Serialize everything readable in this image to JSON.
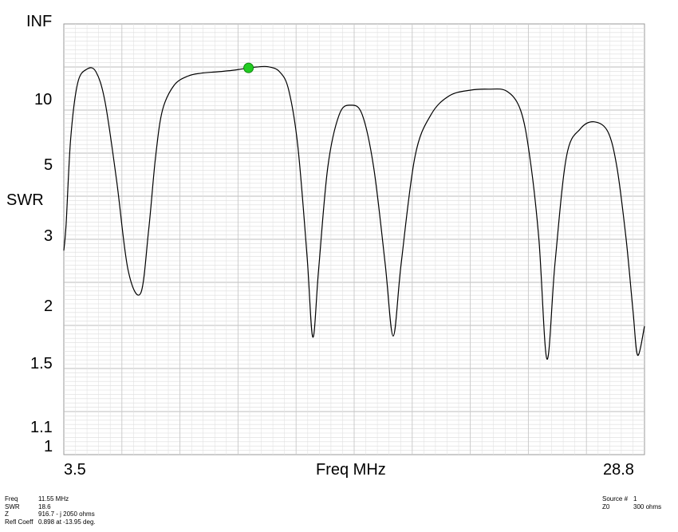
{
  "chart_data": {
    "type": "line",
    "title": "",
    "ylabel": "SWR",
    "xlabel": "Freq MHz",
    "y_scale": "log-swr",
    "y_tick_labels": [
      "INF",
      "10",
      "5",
      "3",
      "2",
      "1.5",
      "1.1",
      "1"
    ],
    "x_tick_labels": [
      "3.5",
      "28.8"
    ],
    "xlim": [
      3.5,
      28.8
    ],
    "grid": true,
    "line_color": "#000000",
    "marker_color": "#22cc22",
    "marker": {
      "x": 11.55,
      "y": 18.6
    },
    "series": [
      {
        "x": [
          3.5,
          3.6,
          3.8,
          4.1,
          4.5,
          4.9,
          5.3,
          5.8,
          6.3,
          6.85,
          7.2,
          7.5,
          7.8,
          8.3,
          8.9,
          9.5,
          10.2,
          10.8,
          11.3,
          11.55,
          11.9,
          12.4,
          12.9,
          13.3,
          13.7,
          14.1,
          14.35,
          14.6,
          15.0,
          15.5,
          16.0,
          16.5,
          17.0,
          17.5,
          17.85,
          18.2,
          18.8,
          19.5,
          20.3,
          21.2,
          22.0,
          22.8,
          23.4,
          23.8,
          24.2,
          24.55,
          24.9,
          25.4,
          26.0,
          26.6,
          27.2,
          27.6,
          28.0,
          28.3,
          28.5,
          28.8
        ],
        "y": [
          2.8,
          3.3,
          6.5,
          13.5,
          18.0,
          17.0,
          10.0,
          4.5,
          2.5,
          2.2,
          3.2,
          5.5,
          9.0,
          13.0,
          15.5,
          16.5,
          17.0,
          17.5,
          18.2,
          18.6,
          19.0,
          19.1,
          17.0,
          12.0,
          6.0,
          2.7,
          1.75,
          2.5,
          5.0,
          8.5,
          9.6,
          8.5,
          5.0,
          2.6,
          1.76,
          2.6,
          5.5,
          8.5,
          11.0,
          12.0,
          12.2,
          11.8,
          9.0,
          5.5,
          3.0,
          1.57,
          2.6,
          5.5,
          7.2,
          7.8,
          7.0,
          5.0,
          3.0,
          2.0,
          1.6,
          1.85
        ]
      }
    ]
  },
  "readout": {
    "left": [
      {
        "key": "Freq",
        "value": "11.55 MHz"
      },
      {
        "key": "SWR",
        "value": "18.6"
      },
      {
        "key": "Z",
        "value": "916.7 - j 2050 ohms"
      },
      {
        "key": "Refl Coeff",
        "value": "0.898 at -13.95 deg."
      }
    ],
    "right": [
      {
        "key": "Source #",
        "value": "1"
      },
      {
        "key": "Z0",
        "value": "300 ohms"
      }
    ]
  }
}
